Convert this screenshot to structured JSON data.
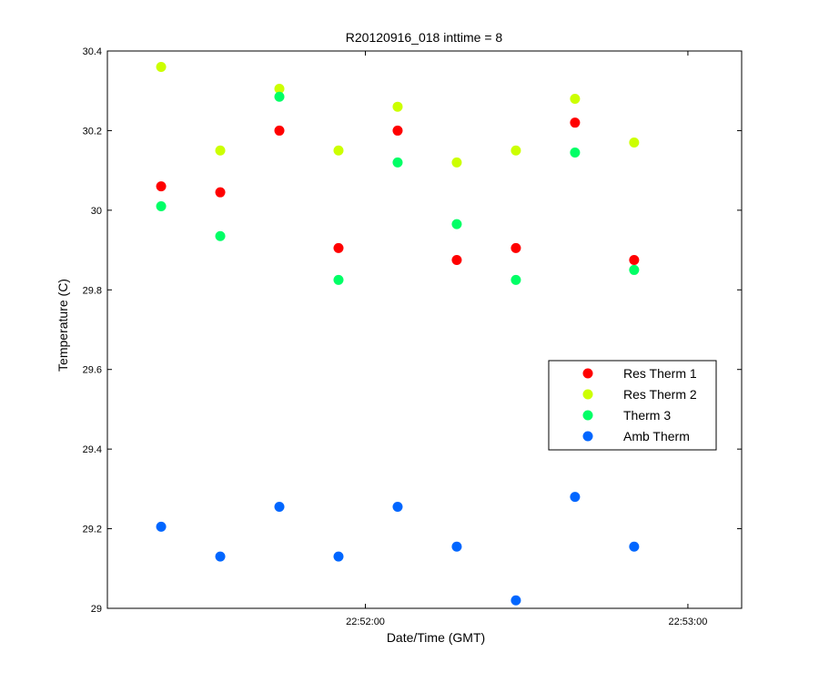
{
  "chart_data": {
    "type": "scatter",
    "title": "R20120916_018 inttime = 8",
    "xlabel": "Date/Time (GMT)",
    "ylabel": "Temperature (C)",
    "x_unit": "time (HH:MM:SS, GMT)",
    "xlim": [
      "22:51:12",
      "22:53:10"
    ],
    "ylim": [
      29,
      30.4
    ],
    "x_ticks": [
      "22:52:00",
      "22:53:00"
    ],
    "y_ticks": [
      29,
      29.2,
      29.4,
      29.6,
      29.8,
      30,
      30.2,
      30.4
    ],
    "y_tick_labels": [
      "29",
      "29.2",
      "29.4",
      "29.6",
      "29.8",
      "30",
      "30.2",
      "30.4"
    ],
    "grid": false,
    "legend_position": "center-right",
    "x": [
      "22:51:22",
      "22:51:33",
      "22:51:44",
      "22:51:55",
      "22:52:06",
      "22:52:17",
      "22:52:28",
      "22:52:39",
      "22:52:50"
    ],
    "series": [
      {
        "name": "Res Therm 1",
        "color": "#ff0000",
        "values": [
          30.06,
          30.045,
          30.2,
          29.905,
          30.2,
          29.875,
          29.905,
          30.22,
          29.875
        ]
      },
      {
        "name": "Res Therm 2",
        "color": "#ccff00",
        "values": [
          30.36,
          30.15,
          30.305,
          30.15,
          30.26,
          30.12,
          30.15,
          30.28,
          30.17
        ]
      },
      {
        "name": "Therm 3",
        "color": "#00ff66",
        "values": [
          30.01,
          29.935,
          30.285,
          29.825,
          30.12,
          29.965,
          29.825,
          30.145,
          29.85
        ]
      },
      {
        "name": "Amb Therm",
        "color": "#0066ff",
        "values": [
          29.205,
          29.13,
          29.255,
          29.13,
          29.255,
          29.155,
          29.02,
          29.28,
          29.155
        ]
      }
    ]
  }
}
